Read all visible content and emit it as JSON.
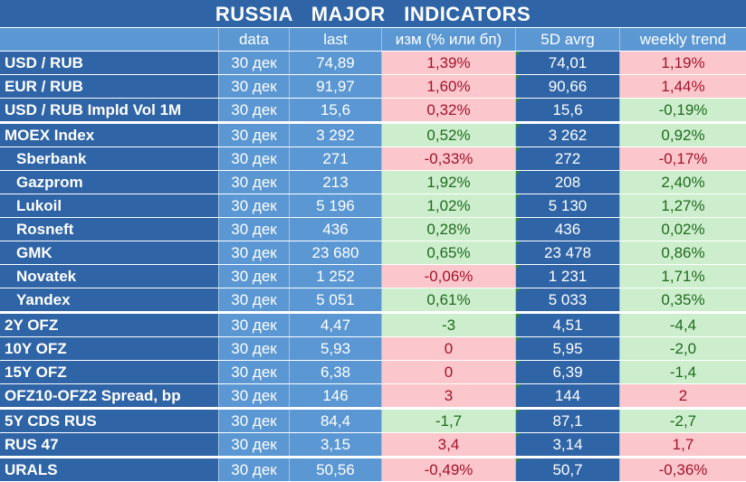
{
  "title": "RUSSIA   MAJOR   INDICATORS",
  "headers": [
    "",
    "data",
    "last",
    "изм (% или бп)",
    "5D avrg",
    "weekly trend"
  ],
  "groups": [
    {
      "rows": [
        {
          "name": "USD / RUB",
          "sub": false,
          "date": "30 дек",
          "last": "74,89",
          "chg": "1,39%",
          "chg_dir": "neg",
          "avg": "74,01",
          "trend": "1,19%",
          "trend_dir": "neg"
        },
        {
          "name": "EUR / RUB",
          "sub": false,
          "date": "30 дек",
          "last": "91,97",
          "chg": "1,60%",
          "chg_dir": "neg",
          "avg": "90,66",
          "trend": "1,44%",
          "trend_dir": "neg"
        },
        {
          "name": "USD / RUB Impld Vol 1M",
          "sub": false,
          "date": "30 дек",
          "last": "15,6",
          "chg": "0,32%",
          "chg_dir": "neg",
          "avg": "15,6",
          "trend": "-0,19%",
          "trend_dir": "pos"
        }
      ]
    },
    {
      "rows": [
        {
          "name": "MOEX Index",
          "sub": false,
          "date": "30 дек",
          "last": "3 292",
          "chg": "0,52%",
          "chg_dir": "pos",
          "avg": "3 262",
          "trend": "0,92%",
          "trend_dir": "pos"
        },
        {
          "name": "Sberbank",
          "sub": true,
          "date": "30 дек",
          "last": "271",
          "chg": "-0,33%",
          "chg_dir": "neg",
          "avg": "272",
          "trend": "-0,17%",
          "trend_dir": "neg"
        },
        {
          "name": "Gazprom",
          "sub": true,
          "date": "30 дек",
          "last": "213",
          "chg": "1,92%",
          "chg_dir": "pos",
          "avg": "208",
          "trend": "2,40%",
          "trend_dir": "pos"
        },
        {
          "name": "Lukoil",
          "sub": true,
          "date": "30 дек",
          "last": "5 196",
          "chg": "1,02%",
          "chg_dir": "pos",
          "avg": "5 130",
          "trend": "1,27%",
          "trend_dir": "pos"
        },
        {
          "name": "Rosneft",
          "sub": true,
          "date": "30 дек",
          "last": "436",
          "chg": "0,28%",
          "chg_dir": "pos",
          "avg": "436",
          "trend": "0,02%",
          "trend_dir": "pos"
        },
        {
          "name": "GMK",
          "sub": true,
          "date": "30 дек",
          "last": "23 680",
          "chg": "0,65%",
          "chg_dir": "pos",
          "avg": "23 478",
          "trend": "0,86%",
          "trend_dir": "pos"
        },
        {
          "name": "Novatek",
          "sub": true,
          "date": "30 дек",
          "last": "1 252",
          "chg": "-0,06%",
          "chg_dir": "neg",
          "avg": "1 231",
          "trend": "1,71%",
          "trend_dir": "pos"
        },
        {
          "name": "Yandex",
          "sub": true,
          "date": "30 дек",
          "last": "5 051",
          "chg": "0,61%",
          "chg_dir": "pos",
          "avg": "5 033",
          "trend": "0,35%",
          "trend_dir": "pos"
        }
      ]
    },
    {
      "rows": [
        {
          "name": "2Y OFZ",
          "sub": false,
          "date": "30 дек",
          "last": "4,47",
          "chg": "-3",
          "chg_dir": "pos",
          "avg": "4,51",
          "trend": "-4,4",
          "trend_dir": "pos"
        },
        {
          "name": "10Y OFZ",
          "sub": false,
          "date": "30 дек",
          "last": "5,93",
          "chg": "0",
          "chg_dir": "neg",
          "avg": "5,95",
          "trend": "-2,0",
          "trend_dir": "pos"
        },
        {
          "name": "15Y OFZ",
          "sub": false,
          "date": "30 дек",
          "last": "6,38",
          "chg": "0",
          "chg_dir": "neg",
          "avg": "6,39",
          "trend": "-1,4",
          "trend_dir": "pos"
        },
        {
          "name": "OFZ10-OFZ2 Spread, bp",
          "sub": false,
          "date": "30 дек",
          "last": "146",
          "chg": "3",
          "chg_dir": "neg",
          "avg": "144",
          "trend": "2",
          "trend_dir": "neg"
        }
      ]
    },
    {
      "rows": [
        {
          "name": "5Y CDS RUS",
          "sub": false,
          "date": "30 дек",
          "last": "84,4",
          "chg": "-1,7",
          "chg_dir": "pos",
          "avg": "87,1",
          "trend": "-2,7",
          "trend_dir": "pos"
        },
        {
          "name": "RUS 47",
          "sub": false,
          "date": "30 дек",
          "last": "3,15",
          "chg": "3,4",
          "chg_dir": "neg",
          "avg": "3,14",
          "trend": "1,7",
          "trend_dir": "neg"
        }
      ]
    },
    {
      "rows": [
        {
          "name": "URALS",
          "sub": false,
          "date": "30 дек",
          "last": "50,56",
          "chg": "-0,49%",
          "chg_dir": "neg",
          "avg": "50,7",
          "trend": "-0,36%",
          "trend_dir": "neg"
        }
      ]
    }
  ],
  "colors": {
    "title_bg": "#2f64a6",
    "header_bg": "#5b97d3",
    "dark_cell": "#2f64a6",
    "light_cell": "#5b97d3",
    "positive_bg": "#cdeecd",
    "positive_text": "#1f6a1f",
    "negative_bg": "#fcc7cc",
    "negative_text": "#a3132a",
    "error_marker": "#2e8b3c"
  }
}
